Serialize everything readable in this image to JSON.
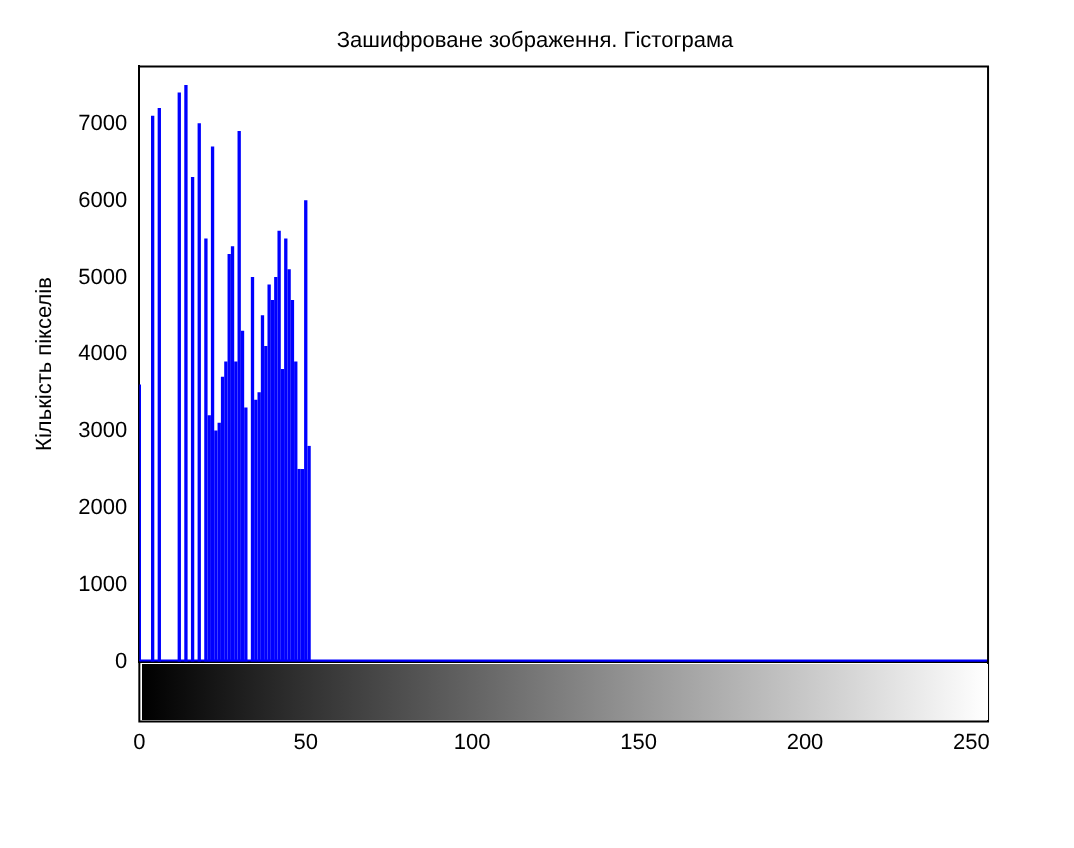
{
  "chart_data": {
    "type": "histogram",
    "title": "Зашифроване зображення. Гістограма",
    "ylabel": "Кількість пікселів",
    "bins": [
      0,
      1,
      2,
      3,
      4,
      5,
      6,
      7,
      8,
      9,
      10,
      11,
      12,
      13,
      14,
      15,
      16,
      17,
      18,
      19,
      20,
      21,
      22,
      23,
      24,
      25,
      26,
      27,
      28,
      29,
      30,
      31,
      32,
      33,
      34,
      35,
      36,
      37,
      38,
      39,
      40,
      41,
      42,
      43,
      44,
      45,
      46,
      47,
      48,
      49,
      50,
      51,
      52,
      53,
      54,
      55,
      56,
      57,
      58,
      59,
      60,
      61,
      62,
      63,
      64,
      65,
      66,
      67,
      68,
      69,
      70,
      71,
      72,
      73,
      74,
      75,
      76,
      77,
      78,
      79,
      80,
      81,
      82,
      83,
      84,
      85,
      86,
      87,
      88,
      89,
      90,
      91,
      92,
      93,
      94,
      95,
      96,
      97,
      98,
      99,
      100,
      101,
      102,
      103,
      104,
      105,
      106,
      107,
      108,
      109,
      110,
      111,
      112,
      113,
      114,
      115,
      116,
      117,
      118,
      119,
      120,
      121,
      122,
      123,
      124,
      125,
      126,
      127,
      128,
      129,
      130,
      131,
      132,
      133,
      134,
      135,
      136,
      137,
      138,
      139,
      140,
      141,
      142,
      143,
      144,
      145,
      146,
      147,
      148,
      149,
      150,
      151,
      152,
      153,
      154,
      155,
      156,
      157,
      158,
      159,
      160,
      161,
      162,
      163,
      164,
      165,
      166,
      167,
      168,
      169,
      170,
      171,
      172,
      173,
      174,
      175,
      176,
      177,
      178,
      179,
      180,
      181,
      182,
      183,
      184,
      185,
      186,
      187,
      188,
      189,
      190,
      191,
      192,
      193,
      194,
      195,
      196,
      197,
      198,
      199,
      200,
      201,
      202,
      203,
      204,
      205,
      206,
      207,
      208,
      209,
      210,
      211,
      212,
      213,
      214,
      215,
      216,
      217,
      218,
      219,
      220,
      221,
      222,
      223,
      224,
      225,
      226,
      227,
      228,
      229,
      230,
      231,
      232,
      233,
      234,
      235,
      236,
      237,
      238,
      239,
      240,
      241,
      242,
      243,
      244,
      245,
      246,
      247,
      248,
      249,
      250,
      251,
      252,
      253,
      254,
      255
    ],
    "values": [
      3600,
      null,
      null,
      null,
      7100,
      null,
      7200,
      null,
      null,
      null,
      null,
      null,
      7400,
      null,
      7500,
      null,
      6300,
      null,
      7000,
      null,
      5500,
      3200,
      6700,
      3000,
      3100,
      3700,
      3900,
      5300,
      5400,
      3900,
      6900,
      4300,
      3300,
      null,
      5000,
      3400,
      3500,
      4500,
      4100,
      4900,
      4700,
      5000,
      5600,
      3800,
      5500,
      5100,
      4700,
      3900,
      2500,
      2500,
      6000,
      2800,
      0,
      0,
      0,
      0,
      0,
      0,
      0,
      0,
      0,
      0,
      0,
      0,
      0,
      0,
      0,
      0,
      0,
      0,
      0,
      0,
      0,
      0,
      0,
      0,
      0,
      0,
      0,
      0,
      0,
      0,
      0,
      0,
      0,
      0,
      0,
      0,
      0,
      0,
      0,
      0,
      0,
      0,
      0,
      0,
      0,
      0,
      0,
      0,
      0,
      0,
      0,
      0,
      0,
      0,
      0,
      0,
      0,
      0,
      0,
      0,
      0,
      0,
      0,
      0,
      0,
      0,
      0,
      0,
      0,
      0,
      0,
      0,
      0,
      0,
      0,
      0,
      0,
      0,
      0,
      0,
      0,
      0,
      0,
      0,
      0,
      0,
      0,
      0,
      0,
      0,
      0,
      0,
      0,
      0,
      0,
      0,
      0,
      0,
      0,
      0,
      0,
      0,
      0,
      0,
      0,
      0,
      0,
      0,
      0,
      0,
      0,
      0,
      0,
      0,
      0,
      0,
      0,
      0,
      0,
      0,
      0,
      0,
      0,
      0,
      0,
      0,
      0,
      0,
      0,
      0,
      0,
      0,
      0,
      0,
      0,
      0,
      0,
      0,
      0,
      0,
      0,
      0,
      0,
      0,
      0,
      0,
      0,
      0,
      0,
      0,
      0,
      0,
      0,
      0,
      0,
      0,
      0,
      0,
      0,
      0,
      0,
      0,
      0,
      0,
      0,
      0,
      0,
      0,
      0,
      0,
      0,
      0,
      0,
      0,
      0,
      0,
      0,
      0,
      0,
      0,
      0,
      0,
      0,
      0,
      0,
      0,
      0,
      0,
      0,
      0,
      0,
      0,
      0,
      0,
      0,
      0,
      0,
      0,
      0,
      0,
      0,
      0,
      0
    ],
    "color": "#0000ff",
    "xlim": [
      0,
      255
    ],
    "ylim": [
      0,
      7750
    ],
    "xticks": [
      0,
      50,
      100,
      150,
      200,
      250
    ],
    "yticks": [
      0,
      1000,
      2000,
      3000,
      4000,
      5000,
      6000,
      7000
    ],
    "grid": false,
    "legend": false
  }
}
